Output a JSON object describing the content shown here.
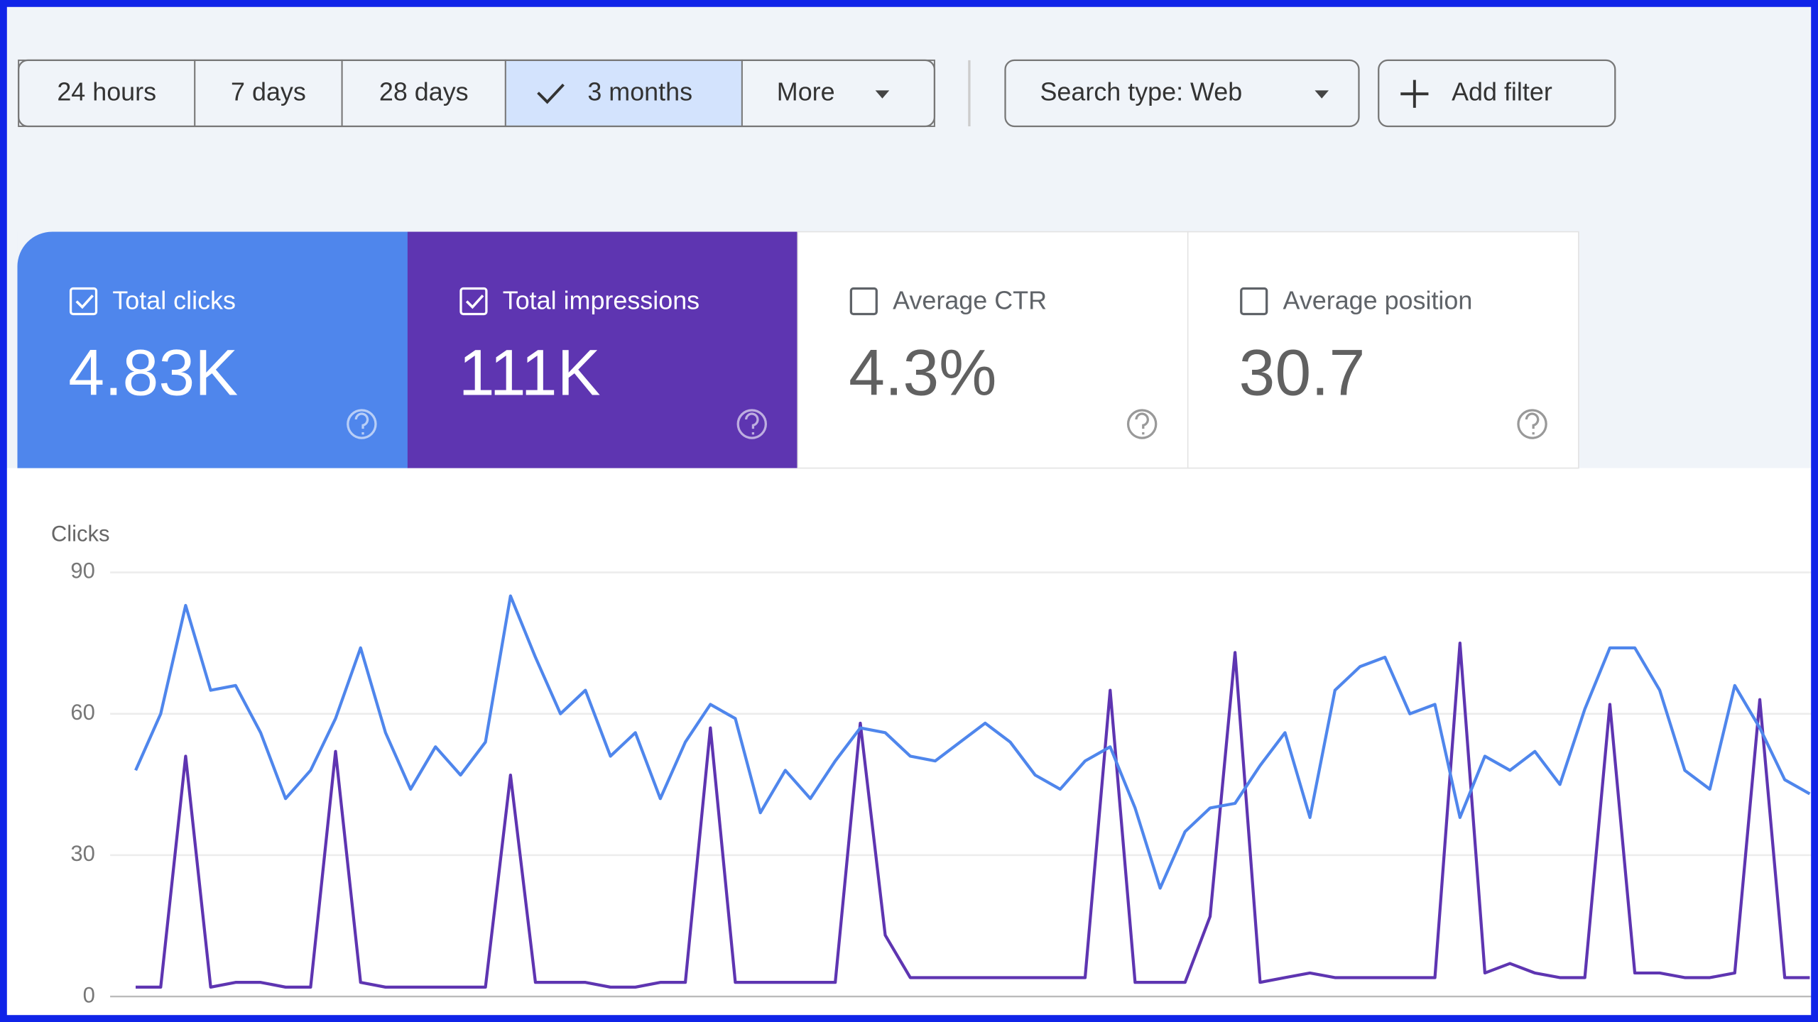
{
  "filters": {
    "date_ranges": [
      "24 hours",
      "7 days",
      "28 days",
      "3 months",
      "More"
    ],
    "selected": 3,
    "search_type": "Search type: Web",
    "add_filter": "Add filter"
  },
  "metrics": [
    {
      "label": "Total clicks",
      "value": "4.83K",
      "checked": true,
      "color": "#4f86ec"
    },
    {
      "label": "Total impressions",
      "value": "111K",
      "checked": true,
      "color": "#5e35b1"
    },
    {
      "label": "Average CTR",
      "value": "4.3%",
      "checked": false,
      "color": "#ffffff"
    },
    {
      "label": "Average position",
      "value": "30.7",
      "checked": false,
      "color": "#ffffff"
    }
  ],
  "chart_data": {
    "type": "line",
    "y_label": "Clicks",
    "ylim": [
      0,
      90
    ],
    "yticks": [
      0,
      30,
      60,
      90
    ],
    "grid": true,
    "series": [
      {
        "color": "#4f86ec",
        "values": [
          48,
          60,
          83,
          65,
          66,
          56,
          42,
          48,
          59,
          74,
          56,
          44,
          53,
          47,
          54,
          85,
          72,
          60,
          65,
          51,
          56,
          42,
          54,
          62,
          59,
          39,
          48,
          42,
          50,
          57,
          56,
          51,
          50,
          54,
          58,
          54,
          47,
          44,
          50,
          53,
          40,
          23,
          35,
          40,
          41,
          49,
          56,
          38,
          65,
          70,
          72,
          60,
          62,
          38,
          51,
          48,
          52,
          45,
          61,
          74,
          74,
          65,
          48,
          44,
          66,
          57,
          46,
          43
        ]
      },
      {
        "color": "#5e35b1",
        "values": [
          2,
          2,
          51,
          2,
          3,
          3,
          2,
          2,
          52,
          3,
          2,
          2,
          2,
          2,
          2,
          47,
          3,
          3,
          3,
          2,
          2,
          3,
          3,
          57,
          3,
          3,
          3,
          3,
          3,
          58,
          13,
          4,
          4,
          4,
          4,
          4,
          4,
          4,
          4,
          65,
          3,
          3,
          3,
          17,
          73,
          3,
          4,
          5,
          4,
          4,
          4,
          4,
          4,
          75,
          5,
          7,
          5,
          4,
          4,
          62,
          5,
          5,
          4,
          4,
          5,
          63,
          4,
          4
        ]
      }
    ]
  }
}
